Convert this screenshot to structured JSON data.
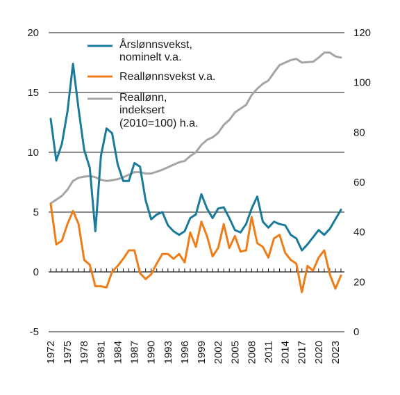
{
  "chart_data": {
    "type": "line",
    "x": [
      1972,
      1973,
      1974,
      1975,
      1976,
      1977,
      1978,
      1979,
      1980,
      1981,
      1982,
      1983,
      1984,
      1985,
      1986,
      1987,
      1988,
      1989,
      1990,
      1991,
      1992,
      1993,
      1994,
      1995,
      1996,
      1997,
      1998,
      1999,
      2000,
      2001,
      2002,
      2003,
      2004,
      2005,
      2006,
      2007,
      2008,
      2009,
      2010,
      2011,
      2012,
      2013,
      2014,
      2015,
      2016,
      2017,
      2018,
      2019,
      2020,
      2021,
      2022,
      2023,
      2024
    ],
    "x_tick_labels": [
      "1972",
      "1975",
      "1978",
      "1981",
      "1984",
      "1987",
      "1990",
      "1993",
      "1996",
      "1999",
      "2002",
      "2005",
      "2008",
      "2011",
      "2014",
      "2017",
      "2020",
      "2023"
    ],
    "y_left": {
      "ticks": [
        20,
        15,
        10,
        5,
        0,
        -5
      ],
      "ylim": [
        -5,
        20
      ]
    },
    "y_right": {
      "ticks": [
        120,
        100,
        80,
        60,
        40,
        20,
        0
      ],
      "ylim": [
        0,
        120
      ]
    },
    "zero_line_left": 0,
    "series": [
      {
        "name": "Årslønnsvekst, nominelt v.a.",
        "name_lines": [
          "Årslønnsvekst,",
          "nominelt v.a."
        ],
        "axis": "left",
        "color": "#1a7a9a",
        "values": [
          12.8,
          9.3,
          10.7,
          13.4,
          17.4,
          13.6,
          10.2,
          8.7,
          3.4,
          9.7,
          12.0,
          11.6,
          9.0,
          7.6,
          7.6,
          9.1,
          8.8,
          6.0,
          4.4,
          4.8,
          5.0,
          3.9,
          3.4,
          3.1,
          3.4,
          4.5,
          4.8,
          6.5,
          5.3,
          4.5,
          5.3,
          5.4,
          4.5,
          3.5,
          3.3,
          4.0,
          5.3,
          6.3,
          4.2,
          3.7,
          4.2,
          4.0,
          3.9,
          3.1,
          2.8,
          1.8,
          2.3,
          2.9,
          3.5,
          3.1,
          3.6,
          4.4,
          5.2
        ]
      },
      {
        "name": "Reallønnsvekst v.a.",
        "name_lines": [
          "Reallønnsvekst v.a."
        ],
        "axis": "left",
        "color": "#ef7d17",
        "values": [
          5.7,
          2.3,
          2.6,
          4.0,
          5.1,
          4.0,
          1.0,
          0.6,
          -1.2,
          -1.2,
          -1.3,
          0.0,
          0.5,
          1.1,
          1.8,
          1.8,
          -0.1,
          -0.6,
          -0.2,
          0.7,
          1.5,
          1.5,
          1.1,
          1.5,
          0.8,
          3.3,
          2.1,
          4.2,
          3.0,
          1.3,
          2.0,
          4.0,
          2.0,
          3.0,
          1.7,
          1.8,
          4.6,
          2.4,
          2.1,
          1.2,
          2.8,
          3.1,
          1.6,
          1.0,
          0.7,
          -1.7,
          0.5,
          0.1,
          1.2,
          1.8,
          -0.2,
          -1.4,
          -0.3
        ]
      },
      {
        "name": "Reallønn, indeksert (2010=100) h.a.",
        "name_lines": [
          "Reallønn,",
          "indeksert",
          "(2010=100) h.a."
        ],
        "axis": "right",
        "color": "#a5a5a5",
        "values": [
          51.5,
          53.0,
          54.5,
          57.0,
          60.5,
          61.8,
          62.2,
          62.5,
          62.0,
          61.0,
          60.5,
          60.8,
          61.2,
          62.0,
          63.0,
          64.0,
          64.0,
          63.5,
          63.5,
          64.2,
          65.0,
          66.0,
          67.0,
          68.0,
          68.5,
          70.5,
          72.0,
          75.0,
          77.0,
          78.0,
          79.8,
          83.0,
          85.0,
          88.0,
          89.5,
          91.0,
          95.0,
          97.5,
          99.5,
          100.8,
          104.0,
          107.0,
          108.0,
          109.0,
          109.5,
          108.0,
          108.2,
          108.3,
          110.0,
          112.0,
          112.0,
          110.5,
          110.0
        ]
      }
    ],
    "legend_placement": "top-left-inside",
    "grid": "horizontal"
  }
}
